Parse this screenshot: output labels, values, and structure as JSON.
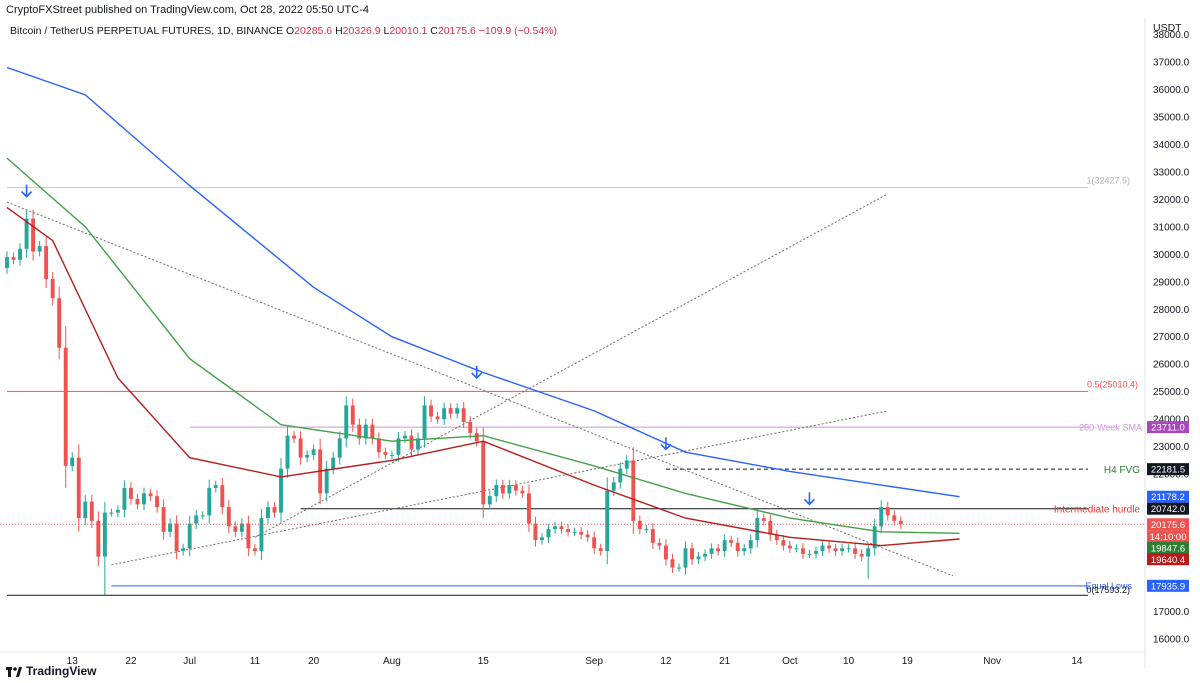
{
  "header": {
    "published_text": "CryptoFXStreet published on TradingView.com, Oct 28, 2022 05:50 UTC-4",
    "symbol_text": "Bitcoin / TetherUS PERPETUAL FUTURES, 1D, BINANCE",
    "ohlc": [
      {
        "label": "O",
        "value": "20285.6"
      },
      {
        "label": "H",
        "value": "20326.9"
      },
      {
        "label": "L",
        "value": "20010.1"
      },
      {
        "label": "C",
        "value": "20175.6"
      },
      {
        "label": "",
        "value": "−109.9 (−0.54%)"
      }
    ],
    "currency": "USDT"
  },
  "footer": {
    "brand": "TradingView"
  },
  "colors": {
    "up": "#26a69a",
    "down": "#ef5350",
    "ema_blue": "#2962ff",
    "ema_green": "#43a047",
    "ema_red": "#b71c1c",
    "arrow": "#2962ff",
    "fib": "#ef5350",
    "sma200": "#ce93d8"
  },
  "chart_data": {
    "type": "candlestick",
    "y_axis": {
      "scale": "linear",
      "min": 15600,
      "max": 38600,
      "ticks": [
        16000,
        17000,
        18000,
        19000,
        20000,
        21000,
        22000,
        23000,
        24000,
        25000,
        26000,
        27000,
        28000,
        29000,
        30000,
        31000,
        32000,
        33000,
        34000,
        35000,
        36000,
        37000,
        38000
      ],
      "tick_labels": [
        "16000.0",
        "17000.0",
        "18000.0",
        "19000.0",
        "20000.0",
        "21000.0",
        "22000.0",
        "23000.0",
        "24000.0",
        "25000.0",
        "26000.0",
        "27000.0",
        "28000.0",
        "29000.0",
        "30000.0",
        "31000.0",
        "32000.0",
        "33000.0",
        "34000.0",
        "35000.0",
        "36000.0",
        "37000.0",
        "38000.0"
      ],
      "position": "right"
    },
    "x_axis": {
      "start": "2022-06-03",
      "end": "2022-11-16",
      "ticks": [
        {
          "date": "2022-06-13",
          "label": "13"
        },
        {
          "date": "2022-06-22",
          "label": "22"
        },
        {
          "date": "2022-07-01",
          "label": "Jul"
        },
        {
          "date": "2022-07-11",
          "label": "11"
        },
        {
          "date": "2022-07-20",
          "label": "20"
        },
        {
          "date": "2022-08-01",
          "label": "Aug"
        },
        {
          "date": "2022-08-15",
          "label": "15"
        },
        {
          "date": "2022-09-01",
          "label": "Sep"
        },
        {
          "date": "2022-09-12",
          "label": "12"
        },
        {
          "date": "2022-09-21",
          "label": "21"
        },
        {
          "date": "2022-10-01",
          "label": "Oct"
        },
        {
          "date": "2022-10-10",
          "label": "10"
        },
        {
          "date": "2022-10-19",
          "label": "19"
        },
        {
          "date": "2022-11-01",
          "label": "Nov"
        },
        {
          "date": "2022-11-14",
          "label": "14"
        }
      ]
    },
    "close_series": {
      "start": "2022-06-03",
      "values": [
        29900,
        29800,
        30200,
        31300,
        30100,
        30300,
        29100,
        28400,
        26600,
        22300,
        22600,
        20400,
        21000,
        20300,
        19000,
        20600,
        20600,
        20700,
        21500,
        21100,
        20900,
        21300,
        21200,
        20800,
        19900,
        20200,
        19200,
        19300,
        20200,
        20500,
        20500,
        21500,
        21600,
        20800,
        20100,
        19900,
        20200,
        19300,
        19200,
        20400,
        20800,
        20600,
        22200,
        23400,
        23300,
        22600,
        22700,
        22900,
        21300,
        22200,
        22600,
        23300,
        24500,
        23800,
        23300,
        23800,
        23300,
        22800,
        22700,
        22700,
        23300,
        23400,
        22900,
        23300,
        24500,
        24100,
        24000,
        24400,
        24200,
        24400,
        23900,
        23500,
        23200,
        20900,
        21200,
        21600,
        21300,
        21600,
        21400,
        21300,
        20200,
        19600,
        19700,
        20000,
        20100,
        20000,
        19900,
        19900,
        19800,
        19700,
        19300,
        19200,
        21400,
        21700,
        22200,
        22500,
        20300,
        20000,
        20000,
        19500,
        19400,
        18900,
        18600,
        18600,
        19300,
        18900,
        19000,
        19100,
        19300,
        19200,
        19600,
        19500,
        19200,
        19300,
        19600,
        20400,
        20300,
        19800,
        19600,
        19400,
        19300,
        19300,
        19100,
        19100,
        19200,
        19400,
        19300,
        19200,
        19300,
        19300,
        19100,
        19000,
        19300,
        20100,
        20800,
        20500,
        20300,
        20175.6
      ]
    },
    "lows": [
      {
        "date": "2022-06-18",
        "value": 17600
      },
      {
        "date": "2022-10-13",
        "value": 18200
      }
    ],
    "overlays": [
      {
        "name": "EMA (blue)",
        "color": "#2962ff",
        "points": [
          [
            "2022-06-03",
            36800
          ],
          [
            "2022-06-15",
            35800
          ],
          [
            "2022-07-01",
            32500
          ],
          [
            "2022-07-20",
            28800
          ],
          [
            "2022-08-01",
            27000
          ],
          [
            "2022-08-15",
            25700
          ],
          [
            "2022-09-01",
            24300
          ],
          [
            "2022-09-15",
            22800
          ],
          [
            "2022-10-01",
            22100
          ],
          [
            "2022-10-15",
            21600
          ],
          [
            "2022-10-27",
            21178.2
          ]
        ]
      },
      {
        "name": "EMA (green)",
        "color": "#43a047",
        "points": [
          [
            "2022-06-03",
            33500
          ],
          [
            "2022-06-15",
            31000
          ],
          [
            "2022-07-01",
            26200
          ],
          [
            "2022-07-15",
            23800
          ],
          [
            "2022-08-01",
            23200
          ],
          [
            "2022-08-15",
            23400
          ],
          [
            "2022-09-01",
            22300
          ],
          [
            "2022-09-15",
            21300
          ],
          [
            "2022-10-01",
            20400
          ],
          [
            "2022-10-15",
            19900
          ],
          [
            "2022-10-27",
            19847.6
          ]
        ]
      },
      {
        "name": "EMA (red)",
        "color": "#b71c1c",
        "points": [
          [
            "2022-06-03",
            31700
          ],
          [
            "2022-06-10",
            30500
          ],
          [
            "2022-06-20",
            25500
          ],
          [
            "2022-07-01",
            22600
          ],
          [
            "2022-07-15",
            21900
          ],
          [
            "2022-08-01",
            22500
          ],
          [
            "2022-08-15",
            23200
          ],
          [
            "2022-09-01",
            21600
          ],
          [
            "2022-09-15",
            20400
          ],
          [
            "2022-10-01",
            19700
          ],
          [
            "2022-10-15",
            19400
          ],
          [
            "2022-10-27",
            19640.4
          ]
        ]
      }
    ],
    "trendlines": [
      {
        "from": [
          "2022-06-03",
          31900
        ],
        "to": [
          "2022-10-26",
          18300
        ]
      },
      {
        "from": [
          "2022-07-11",
          19700
        ],
        "to": [
          "2022-10-16",
          32200
        ]
      },
      {
        "from": [
          "2022-06-19",
          18700
        ],
        "to": [
          "2022-10-16",
          24300
        ]
      }
    ],
    "horizontal_levels": [
      {
        "price": 32427.5,
        "label": "1(32427.5)",
        "from": "2022-06-03",
        "color": "#c8c8c8"
      },
      {
        "price": 25010.4,
        "label": "0.5(25010.4)",
        "from": "2022-06-03",
        "color": "#ef5350"
      },
      {
        "price": 23711.0,
        "label": "200-Week SMA",
        "from": "2022-07-01",
        "color": "#ce93d8"
      },
      {
        "price": 22181.5,
        "label": "H4 FVG",
        "from": "2022-09-12",
        "color": "#131722",
        "dashed": true
      },
      {
        "price": 20742.0,
        "label": "Intermediate hurdle",
        "from": "2022-07-18",
        "color": "#131722"
      },
      {
        "price": 17935.9,
        "label": "Equal Lows",
        "from": "2022-06-19",
        "color": "#2962ff"
      },
      {
        "price": 17593.2,
        "label": "0(17593.2)",
        "from": "2022-06-03",
        "color": "#131722"
      }
    ],
    "level_text": {
      "fib_0": "0(17593.2)",
      "equal_lows": "Equal Lows"
    },
    "price_labels": [
      {
        "value": "23711.0",
        "price": 23711.0,
        "color": "#ab47bc"
      },
      {
        "value": "22181.5",
        "price": 22181.5,
        "color": "#131722"
      },
      {
        "value": "21178.2",
        "price": 21178.2,
        "color": "#2962ff"
      },
      {
        "value": "20742.0",
        "price": 20742.0,
        "color": "#131722"
      },
      {
        "value": "20175.6",
        "price": 20175.6,
        "color": "#ef5350"
      },
      {
        "value": "14:10:00",
        "price": 20175.6,
        "color": "#ef5350",
        "sub": true
      },
      {
        "value": "19847.6",
        "price": 19847.6,
        "color": "#2e7d32"
      },
      {
        "value": "19640.4",
        "price": 19640.4,
        "color": "#b71c1c"
      },
      {
        "value": "17935.9",
        "price": 17935.9,
        "color": "#2962ff"
      }
    ],
    "arrows": [
      {
        "date": "2022-06-06",
        "price": 32100
      },
      {
        "date": "2022-08-14",
        "price": 25500
      },
      {
        "date": "2022-09-12",
        "price": 22900
      },
      {
        "date": "2022-10-04",
        "price": 20900
      }
    ]
  }
}
